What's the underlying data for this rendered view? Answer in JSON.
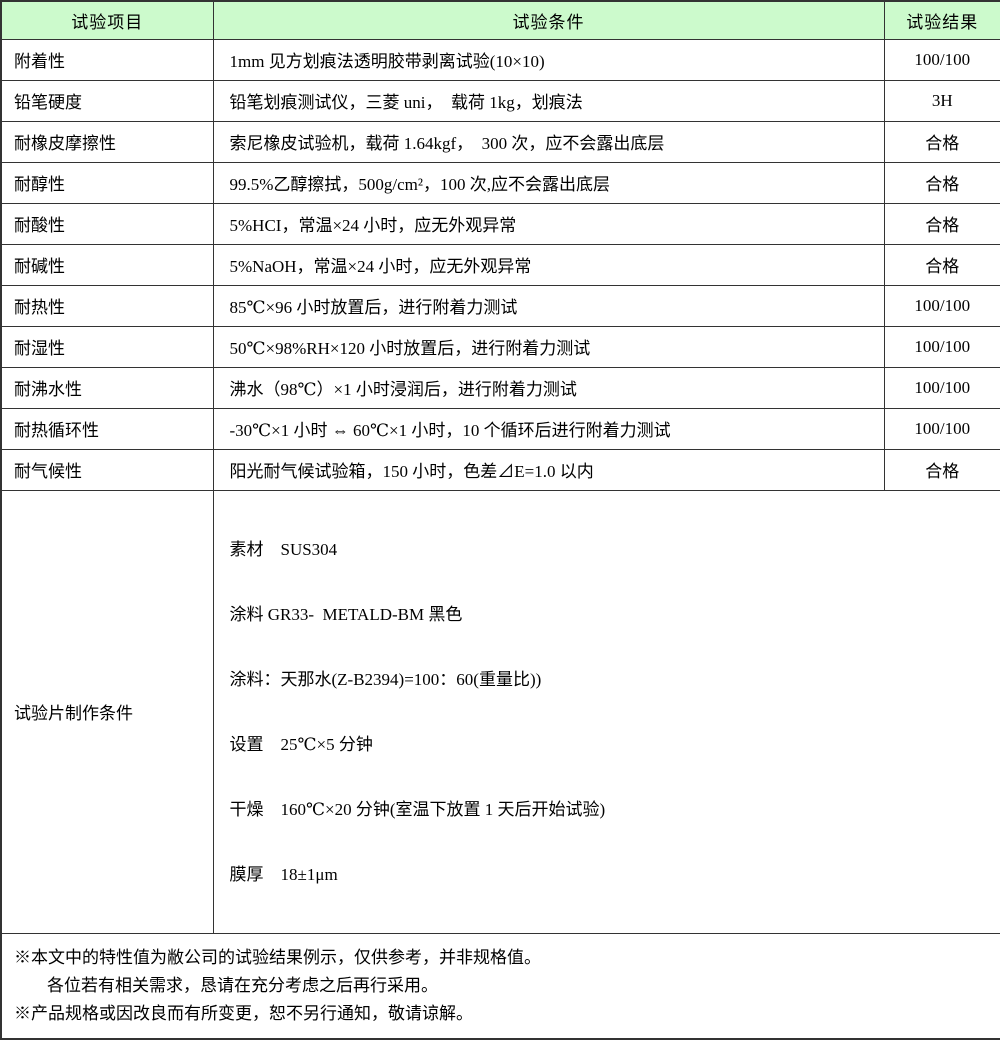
{
  "colors": {
    "header_bg": "#ccfacc",
    "border": "#333333",
    "text": "#000000"
  },
  "table": {
    "headers": {
      "item": "试验项目",
      "condition": "试验条件",
      "result": "试验结果"
    },
    "rows": [
      {
        "item": "附着性",
        "condition": "1mm 见方划痕法透明胶带剥离试验(10×10)",
        "result": "100/100"
      },
      {
        "item": "铅笔硬度",
        "condition": "铅笔划痕测试仪，三菱 uni，  载荷 1kg，划痕法",
        "result": "3H"
      },
      {
        "item": "耐橡皮摩擦性",
        "condition": "索尼橡皮试验机，载荷 1.64kgf，  300 次，应不会露出底层",
        "result": "合格"
      },
      {
        "item": "耐醇性",
        "condition": "99.5%乙醇擦拭，500g/cm²，100 次,应不会露出底层",
        "result": "合格"
      },
      {
        "item": "耐酸性",
        "condition": "5%HCI，常温×24 小时，应无外观异常",
        "result": "合格"
      },
      {
        "item": "耐碱性",
        "condition": "5%NaOH，常温×24 小时，应无外观异常",
        "result": "合格"
      },
      {
        "item": "耐热性",
        "condition": "85℃×96 小时放置后，进行附着力测试",
        "result": "100/100"
      },
      {
        "item": "耐湿性",
        "condition": "50℃×98%RH×120 小时放置后，进行附着力测试",
        "result": "100/100"
      },
      {
        "item": "耐沸水性",
        "condition": "沸水（98℃）×1 小时浸润后，进行附着力测试",
        "result": "100/100"
      },
      {
        "item": "耐热循环性",
        "condition": "-30℃×1 小时 ⇔ 60℃×1 小时，10 个循环后进行附着力测试",
        "result": "100/100"
      },
      {
        "item": "耐气候性",
        "condition": "阳光耐气候试验箱，150 小时，色差⊿E=1.0 以内",
        "result": "合格"
      }
    ],
    "prep_row": {
      "item": "试验片制作条件",
      "lines": [
        "素材　SUS304",
        "涂料 GR33-  METALD-BM 黑色",
        "涂料：天那水(Z-B2394)=100：60(重量比))",
        "设置　25℃×5 分钟",
        "干燥　160℃×20 分钟(室温下放置 1 天后开始试验)",
        "膜厚　18±1μm"
      ]
    },
    "footnotes": [
      "※本文中的特性值为敝公司的试验结果例示，仅供参考，并非规格值。",
      "各位若有相关需求，恳请在充分考虑之后再行采用。",
      "※产品规格或因改良而有所变更，恕不另行通知，敬请谅解。"
    ]
  }
}
